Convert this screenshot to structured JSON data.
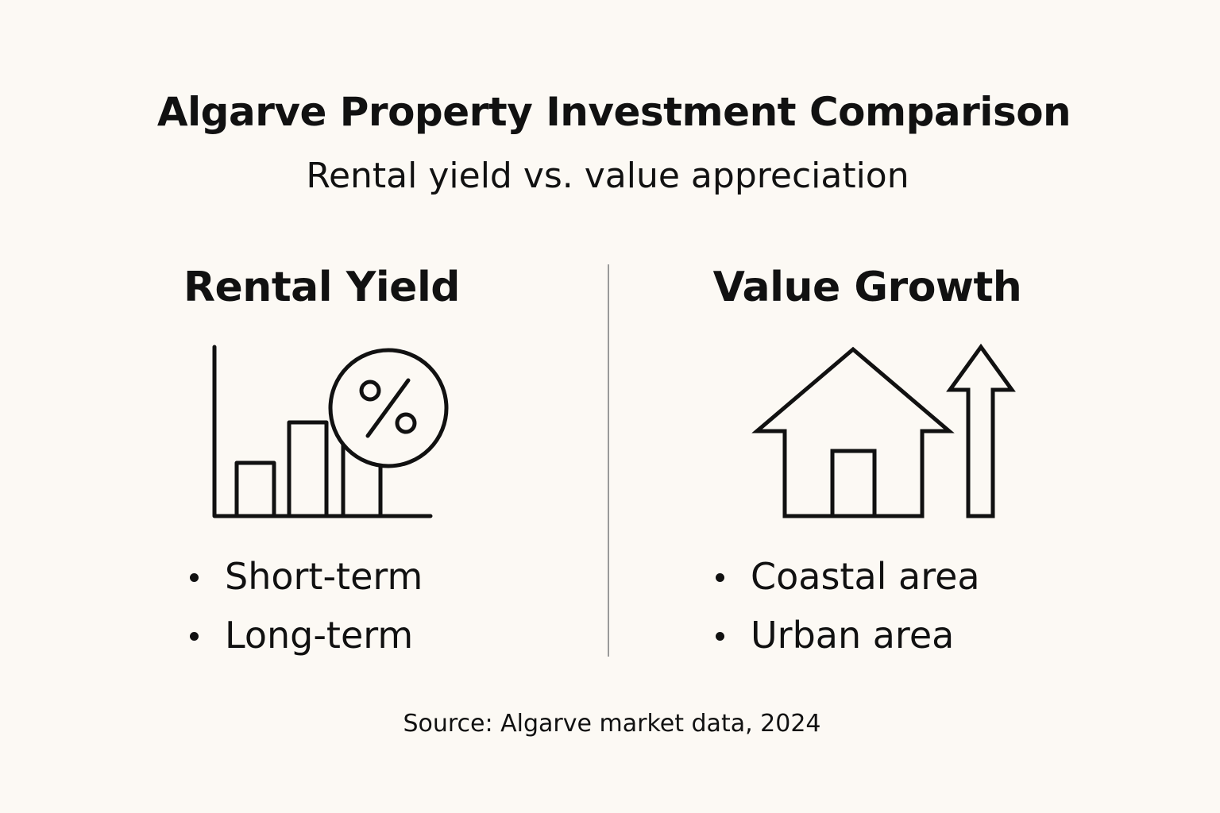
{
  "title": "Algarve Property Investment Comparison",
  "subtitle": "Rental yield vs. value appreciation",
  "left_panel": {
    "heading": "Rental Yield",
    "icon": "bar-chart-with-percent-icon",
    "items": [
      "Short-term",
      "Long-term"
    ]
  },
  "right_panel": {
    "heading": "Value Growth",
    "icon": "house-with-up-arrow-icon",
    "items": [
      "Coastal area",
      "Urban area"
    ]
  },
  "source": "Source: Algarve market data, 2024",
  "colors": {
    "background": "#fcf9f4",
    "ink": "#111111",
    "divider": "#9a9a9a"
  }
}
